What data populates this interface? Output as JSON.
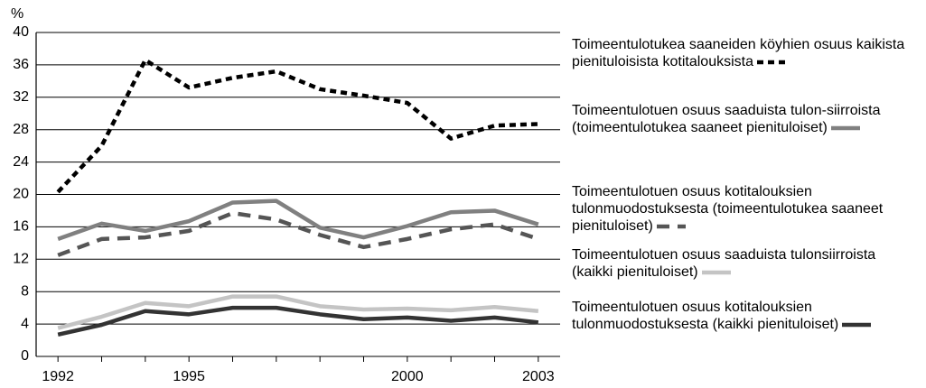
{
  "chart_data": {
    "type": "line",
    "y_label": "%",
    "x": [
      1992,
      1993,
      1994,
      1995,
      1996,
      1997,
      1998,
      1999,
      2000,
      2001,
      2002,
      2003
    ],
    "xlim": [
      1991.5,
      2003.5
    ],
    "xticks": [
      1992,
      1995,
      2000,
      2003
    ],
    "ylim": [
      0,
      40
    ],
    "yticks": [
      0,
      4,
      8,
      12,
      16,
      20,
      24,
      28,
      32,
      36,
      40
    ],
    "grid": true,
    "series": [
      {
        "name": "Toimeentulotukea saaneiden köyhien osuus kaikista pienituloisista kotitalouksista",
        "color": "#000000",
        "style": "dotted",
        "values": [
          20.3,
          26,
          36.6,
          33.2,
          34.4,
          35.2,
          33,
          32.2,
          31.3,
          26.9,
          28.5,
          28.7
        ]
      },
      {
        "name": "Toimeentulotuen osuus saaduista tulon-siirroista (toimeentulotukea saaneet pienituloiset)",
        "color": "#808080",
        "style": "solid",
        "values": [
          14.5,
          16.4,
          15.5,
          16.7,
          19.0,
          19.2,
          15.9,
          14.7,
          16.1,
          17.8,
          18.0,
          16.3
        ]
      },
      {
        "name": "Toimeentulotuen osuus kotitalouksien tulonmuodostuksesta (toimeentulotukea saaneet pienituloiset)",
        "color": "#555555",
        "style": "dashed",
        "values": [
          12.5,
          14.5,
          14.7,
          15.5,
          17.7,
          16.9,
          15.0,
          13.5,
          14.5,
          15.7,
          16.3,
          14.5
        ]
      },
      {
        "name": "Toimeentulotuen osuus saaduista tulonsiirroista (kaikki pienituloiset)",
        "color": "#c4c4c4",
        "style": "solid",
        "values": [
          3.5,
          4.9,
          6.6,
          6.2,
          7.4,
          7.4,
          6.2,
          5.8,
          5.9,
          5.7,
          6.1,
          5.6
        ]
      },
      {
        "name": "Toimeentulotuen osuus kotitalouksien tulonmuodostuksesta (kaikki pienituloiset)",
        "color": "#333333",
        "style": "solid",
        "values": [
          2.7,
          3.9,
          5.6,
          5.2,
          6.0,
          6.0,
          5.2,
          4.6,
          4.8,
          4.4,
          4.8,
          4.2
        ]
      }
    ]
  }
}
